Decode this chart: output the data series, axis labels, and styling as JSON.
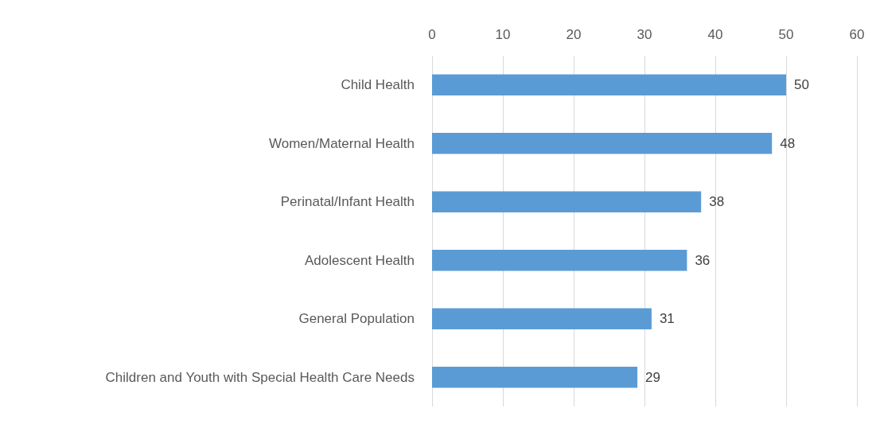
{
  "chart_data": {
    "type": "bar",
    "orientation": "horizontal",
    "categories": [
      "Child Health",
      "Women/Maternal Health",
      "Perinatal/Infant Health",
      "Adolescent Health",
      "General Population",
      "Children and Youth with Special Health Care Needs"
    ],
    "values": [
      50,
      48,
      38,
      36,
      31,
      29
    ],
    "color": "#5b9bd5",
    "xlim": [
      0,
      60
    ],
    "xticks": [
      0,
      10,
      20,
      30,
      40,
      50,
      60
    ],
    "grid": "x",
    "data_labels": true
  }
}
